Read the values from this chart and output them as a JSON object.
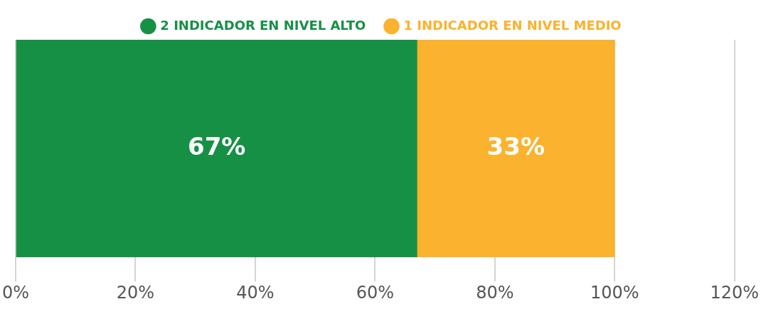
{
  "chart_data": {
    "type": "bar",
    "orientation": "horizontal",
    "stacked": true,
    "categories": [
      null
    ],
    "series": [
      {
        "name": "2 INDICADOR EN NIVEL ALTO",
        "color": "#169045",
        "values": [
          67
        ],
        "value_labels": [
          "67%"
        ]
      },
      {
        "name": "1 INDICADOR EN NIVEL MEDIO",
        "color": "#fbb22e",
        "values": [
          33
        ],
        "value_labels": [
          "33%"
        ]
      }
    ],
    "xlim": [
      0,
      120
    ],
    "xticks": [
      {
        "value": 0,
        "label": "0%"
      },
      {
        "value": 20,
        "label": "20%"
      },
      {
        "value": 40,
        "label": "40%"
      },
      {
        "value": 60,
        "label": "60%"
      },
      {
        "value": 80,
        "label": "80%"
      },
      {
        "value": 100,
        "label": "100%"
      },
      {
        "value": 120,
        "label": "120%"
      }
    ],
    "grid": "x",
    "legend": "top"
  }
}
